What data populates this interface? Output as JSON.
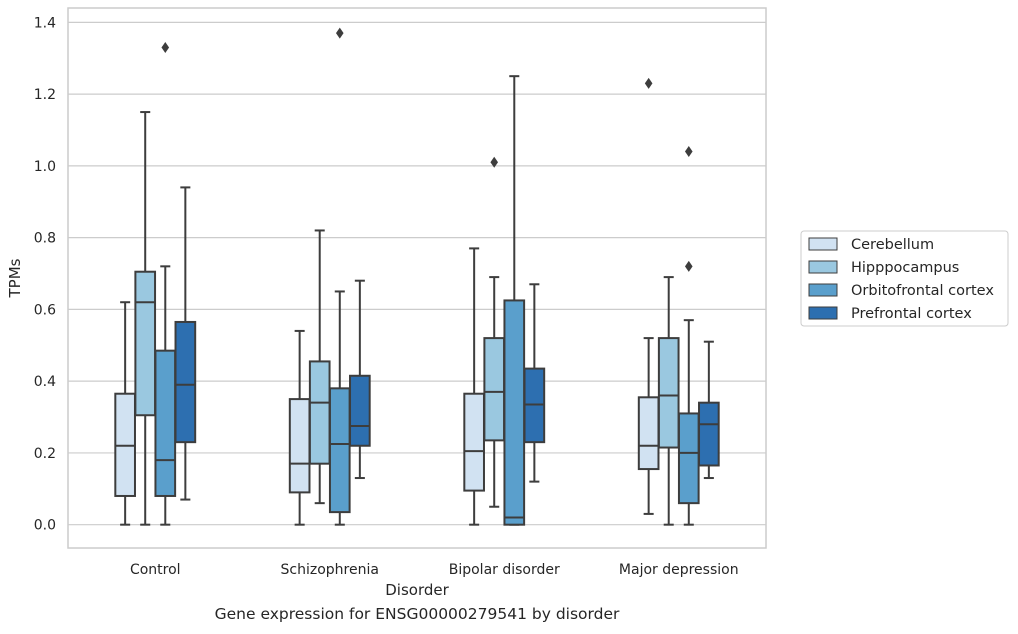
{
  "caption": "Gene expression for ENSG00000279541 by disorder",
  "chart_data": {
    "type": "box",
    "title": "",
    "xlabel": "Disorder",
    "ylabel": "TPMs",
    "ylim": [
      -0.065,
      1.44
    ],
    "yticks": [
      0.0,
      0.2,
      0.4,
      0.6,
      0.8,
      1.0,
      1.2,
      1.4
    ],
    "ytick_labels": [
      "0.0",
      "0.2",
      "0.4",
      "0.6",
      "0.8",
      "1.0",
      "1.2",
      "1.4"
    ],
    "grid": true,
    "legend_position": "right",
    "categories": [
      "Control",
      "Schizophrenia",
      "Bipolar disorder",
      "Major depression"
    ],
    "series": [
      {
        "name": "Cerebellum",
        "color": "#d1e2f2",
        "boxes": [
          {
            "whislo": 0.0,
            "q1": 0.08,
            "med": 0.22,
            "q3": 0.365,
            "whishi": 0.62,
            "fliers": []
          },
          {
            "whislo": 0.0,
            "q1": 0.09,
            "med": 0.17,
            "q3": 0.35,
            "whishi": 0.54,
            "fliers": []
          },
          {
            "whislo": 0.0,
            "q1": 0.095,
            "med": 0.205,
            "q3": 0.365,
            "whishi": 0.77,
            "fliers": []
          },
          {
            "whislo": 0.03,
            "q1": 0.155,
            "med": 0.22,
            "q3": 0.355,
            "whishi": 0.52,
            "fliers": [
              1.23
            ]
          }
        ]
      },
      {
        "name": "Hipppocampus",
        "color": "#9ac8e0",
        "boxes": [
          {
            "whislo": 0.0,
            "q1": 0.305,
            "med": 0.62,
            "q3": 0.705,
            "whishi": 1.15,
            "fliers": []
          },
          {
            "whislo": 0.06,
            "q1": 0.17,
            "med": 0.34,
            "q3": 0.455,
            "whishi": 0.82,
            "fliers": []
          },
          {
            "whislo": 0.05,
            "q1": 0.235,
            "med": 0.37,
            "q3": 0.52,
            "whishi": 0.69,
            "fliers": [
              1.01
            ]
          },
          {
            "whislo": 0.0,
            "q1": 0.215,
            "med": 0.36,
            "q3": 0.52,
            "whishi": 0.69,
            "fliers": []
          }
        ]
      },
      {
        "name": "Orbitofrontal cortex",
        "color": "#5a9fcc",
        "boxes": [
          {
            "whislo": 0.0,
            "q1": 0.08,
            "med": 0.18,
            "q3": 0.485,
            "whishi": 0.72,
            "fliers": [
              1.33
            ]
          },
          {
            "whislo": 0.0,
            "q1": 0.035,
            "med": 0.225,
            "q3": 0.38,
            "whishi": 0.65,
            "fliers": [
              1.37
            ]
          },
          {
            "whislo": 0.0,
            "q1": 0.0,
            "med": 0.02,
            "q3": 0.625,
            "whishi": 1.25,
            "fliers": []
          },
          {
            "whislo": 0.0,
            "q1": 0.06,
            "med": 0.2,
            "q3": 0.31,
            "whishi": 0.57,
            "fliers": [
              0.72,
              1.04
            ]
          }
        ]
      },
      {
        "name": "Prefrontal cortex",
        "color": "#2d6fb0",
        "boxes": [
          {
            "whislo": 0.07,
            "q1": 0.23,
            "med": 0.39,
            "q3": 0.565,
            "whishi": 0.94,
            "fliers": []
          },
          {
            "whislo": 0.13,
            "q1": 0.22,
            "med": 0.275,
            "q3": 0.415,
            "whishi": 0.68,
            "fliers": []
          },
          {
            "whislo": 0.12,
            "q1": 0.23,
            "med": 0.335,
            "q3": 0.435,
            "whishi": 0.67,
            "fliers": []
          },
          {
            "whislo": 0.13,
            "q1": 0.165,
            "med": 0.28,
            "q3": 0.34,
            "whishi": 0.51,
            "fliers": []
          }
        ]
      }
    ]
  }
}
